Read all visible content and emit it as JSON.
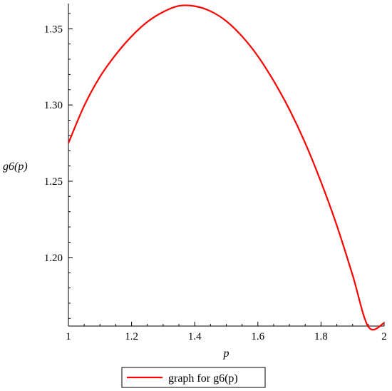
{
  "chart_data": {
    "type": "line",
    "title": "",
    "xlabel": "p",
    "ylabel": "g6(p)",
    "xlim": [
      1,
      2
    ],
    "ylim": [
      1.155,
      1.3665
    ],
    "x_ticks": [
      "1",
      "1.2",
      "1.4",
      "1.6",
      "1.8",
      "2"
    ],
    "y_ticks": [
      "1.20",
      "1.25",
      "1.30",
      "1.35"
    ],
    "grid": false,
    "legend_position": "bottom",
    "series": [
      {
        "name": "graph for g6(p)",
        "color": "#ff0000",
        "x": [
          1.0,
          1.05,
          1.1,
          1.15,
          1.2,
          1.25,
          1.3,
          1.35,
          1.4,
          1.45,
          1.5,
          1.55,
          1.6,
          1.65,
          1.7,
          1.75,
          1.8,
          1.85,
          1.9,
          1.95,
          2.0
        ],
        "y": [
          1.275,
          1.2995,
          1.3185,
          1.333,
          1.345,
          1.3545,
          1.361,
          1.365,
          1.3648,
          1.3615,
          1.355,
          1.345,
          1.332,
          1.3158,
          1.297,
          1.275,
          1.2495,
          1.221,
          1.1885,
          1.1545,
          1.157
        ]
      }
    ]
  }
}
